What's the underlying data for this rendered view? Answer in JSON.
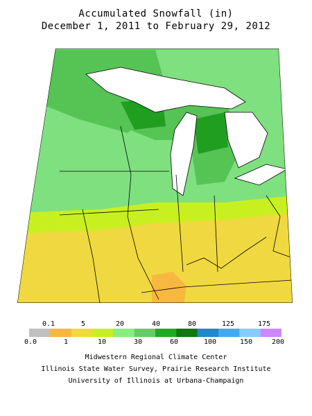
{
  "title": "Accumulated Snowfall (in)",
  "subtitle": "December 1, 2011 to February 29, 2012",
  "legend": {
    "top_labels": [
      "0.1",
      "5",
      "20",
      "40",
      "80",
      "125",
      "175"
    ],
    "bottom_labels": [
      "0.0",
      "1",
      "10",
      "30",
      "60",
      "100",
      "150",
      "200"
    ],
    "colors": [
      "#c0c0c0",
      "#f8b840",
      "#f0d840",
      "#c8f020",
      "#88ee80",
      "#66cc66",
      "#22aa22",
      "#117711",
      "#2288cc",
      "#44aaee",
      "#88ccff",
      "#cc88ff"
    ]
  },
  "credits": {
    "line1": "Midwestern Regional Climate Center",
    "line2": "Illinois State Water Survey, Prairie Research Institute",
    "line3": "University of Illinois at Urbana-Champaign"
  },
  "map_colors": {
    "heavy_snow": "#2f86c8",
    "very_high": "#1f9e1f",
    "high": "#55c455",
    "medium": "#7fe07f",
    "low": "#c8f020",
    "very_low": "#f0d840",
    "trace": "#f8b840",
    "water": "#ffffff"
  }
}
